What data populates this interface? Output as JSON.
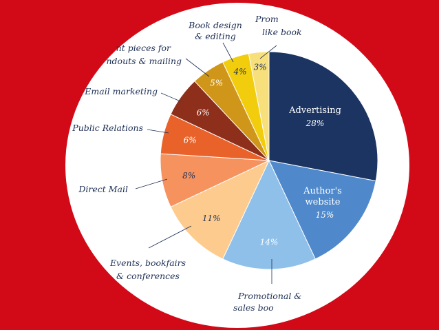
{
  "chart_data": {
    "type": "pie",
    "title": "",
    "slices": [
      {
        "label": "Advertising",
        "value": 28,
        "pct_label": "28%",
        "color": "#1c3461"
      },
      {
        "label": "Author's website",
        "value": 15,
        "pct_label": "15%",
        "color": "#4f89cc"
      },
      {
        "label": "Promotional & sales book…",
        "value": 14,
        "pct_label": "14%",
        "color": "#8fc0ea"
      },
      {
        "label": "Events, bookfairs & conferences",
        "value": 11,
        "pct_label": "11%",
        "color": "#fdcb8d"
      },
      {
        "label": "Direct Mail",
        "value": 8,
        "pct_label": "8%",
        "color": "#f6925e"
      },
      {
        "label": "Public Relations",
        "value": 6,
        "pct_label": "6%",
        "color": "#e8622a"
      },
      {
        "label": "Email marketing",
        "value": 6,
        "pct_label": "6%",
        "color": "#8d2f1b"
      },
      {
        "label": "…nt pieces for …ndouts & mailing",
        "value": 5,
        "pct_label": "5%",
        "color": "#cf961a"
      },
      {
        "label": "Book design & editing",
        "value": 4,
        "pct_label": "4%",
        "color": "#f2cd0d"
      },
      {
        "label": "Prom… like bookm…",
        "value": 3,
        "pct_label": "3%",
        "color": "#f7e07c"
      }
    ]
  },
  "labels": {
    "advertising": "Advertising",
    "website_1": "Author's",
    "website_2": "website",
    "promo_1": "Promotional &",
    "promo_2": "sales boo",
    "events_1": "Events, bookfairs",
    "events_2": "& conferences",
    "direct_mail": "Direct Mail",
    "pr": "Public Relations",
    "email": "Email marketing",
    "print_1": "nt pieces for",
    "print_2": "ndouts & mailing",
    "design_1": "Book design",
    "design_2": "& editing",
    "bookmark_1": "Prom",
    "bookmark_2": "like book"
  },
  "colors": {
    "background": "#d20a18",
    "circle": "#ffffff",
    "text_dark": "#1d2f55"
  }
}
